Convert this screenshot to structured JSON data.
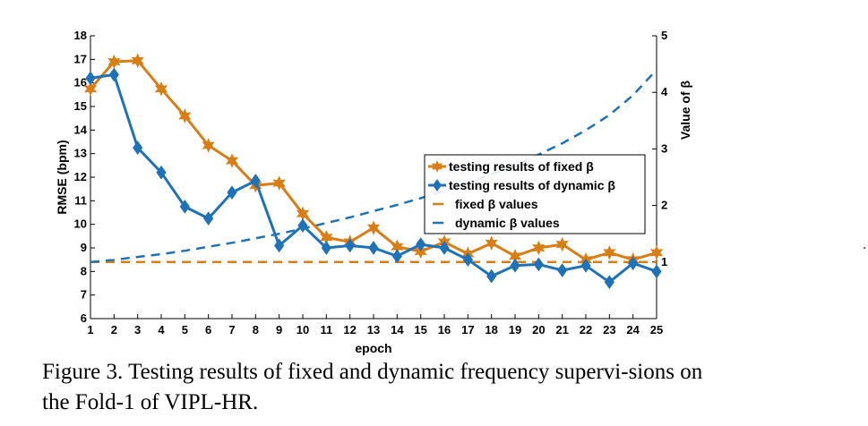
{
  "chart_data": {
    "type": "line",
    "x": [
      1,
      2,
      3,
      4,
      5,
      6,
      7,
      8,
      9,
      10,
      11,
      12,
      13,
      14,
      15,
      16,
      17,
      18,
      19,
      20,
      21,
      22,
      23,
      24,
      25
    ],
    "xlabel": "epoch",
    "ylabel": "RMSE (bpm)",
    "y2label": "Value of β",
    "ylim": [
      6,
      18
    ],
    "y2lim": [
      0,
      5
    ],
    "yticks": [
      6,
      7,
      8,
      9,
      10,
      11,
      12,
      13,
      14,
      15,
      16,
      17,
      18
    ],
    "y2ticks": [
      1,
      2,
      3,
      4,
      5
    ],
    "grid": false,
    "legend_position": "center-right",
    "series": [
      {
        "name": "testing results of fixed β",
        "axis": "left",
        "marker": "hexagram",
        "color": "#d97d15",
        "values": [
          15.75,
          16.9,
          16.95,
          15.75,
          14.6,
          13.35,
          12.7,
          11.65,
          11.75,
          10.45,
          9.45,
          9.25,
          9.85,
          9.05,
          8.85,
          9.25,
          8.75,
          9.2,
          8.65,
          9.0,
          9.15,
          8.5,
          8.8,
          8.5,
          8.8
        ]
      },
      {
        "name": "testing results of dynamic β",
        "axis": "left",
        "marker": "diamond",
        "color": "#1f72b8",
        "values": [
          16.2,
          16.35,
          13.25,
          12.2,
          10.75,
          10.25,
          11.35,
          11.85,
          9.1,
          9.95,
          9.0,
          9.1,
          9.0,
          8.65,
          9.15,
          9.0,
          8.5,
          7.8,
          8.25,
          8.3,
          8.05,
          8.25,
          7.55,
          8.35,
          8.0
        ]
      },
      {
        "name": "fixed β values",
        "axis": "right",
        "style": "dashed",
        "color": "#d97d15",
        "values": [
          1.0,
          1.0,
          1.0,
          1.0,
          1.0,
          1.0,
          1.0,
          1.0,
          1.0,
          1.0,
          1.0,
          1.0,
          1.0,
          1.0,
          1.0,
          1.0,
          1.0,
          1.0,
          1.0,
          1.0,
          1.0,
          1.0,
          1.0,
          1.0,
          1.0
        ]
      },
      {
        "name": "dynamic β values",
        "axis": "right",
        "style": "dashed",
        "color": "#1f72b8",
        "values": [
          1.0,
          1.04,
          1.09,
          1.14,
          1.2,
          1.27,
          1.34,
          1.42,
          1.5,
          1.59,
          1.69,
          1.79,
          1.9,
          2.01,
          2.13,
          2.26,
          2.4,
          2.55,
          2.72,
          2.9,
          3.1,
          3.33,
          3.6,
          3.95,
          4.4
        ]
      }
    ]
  },
  "caption": "Figure 3.  Testing results of fixed and dynamic frequency supervi-sions on the Fold-1 of VIPL-HR."
}
